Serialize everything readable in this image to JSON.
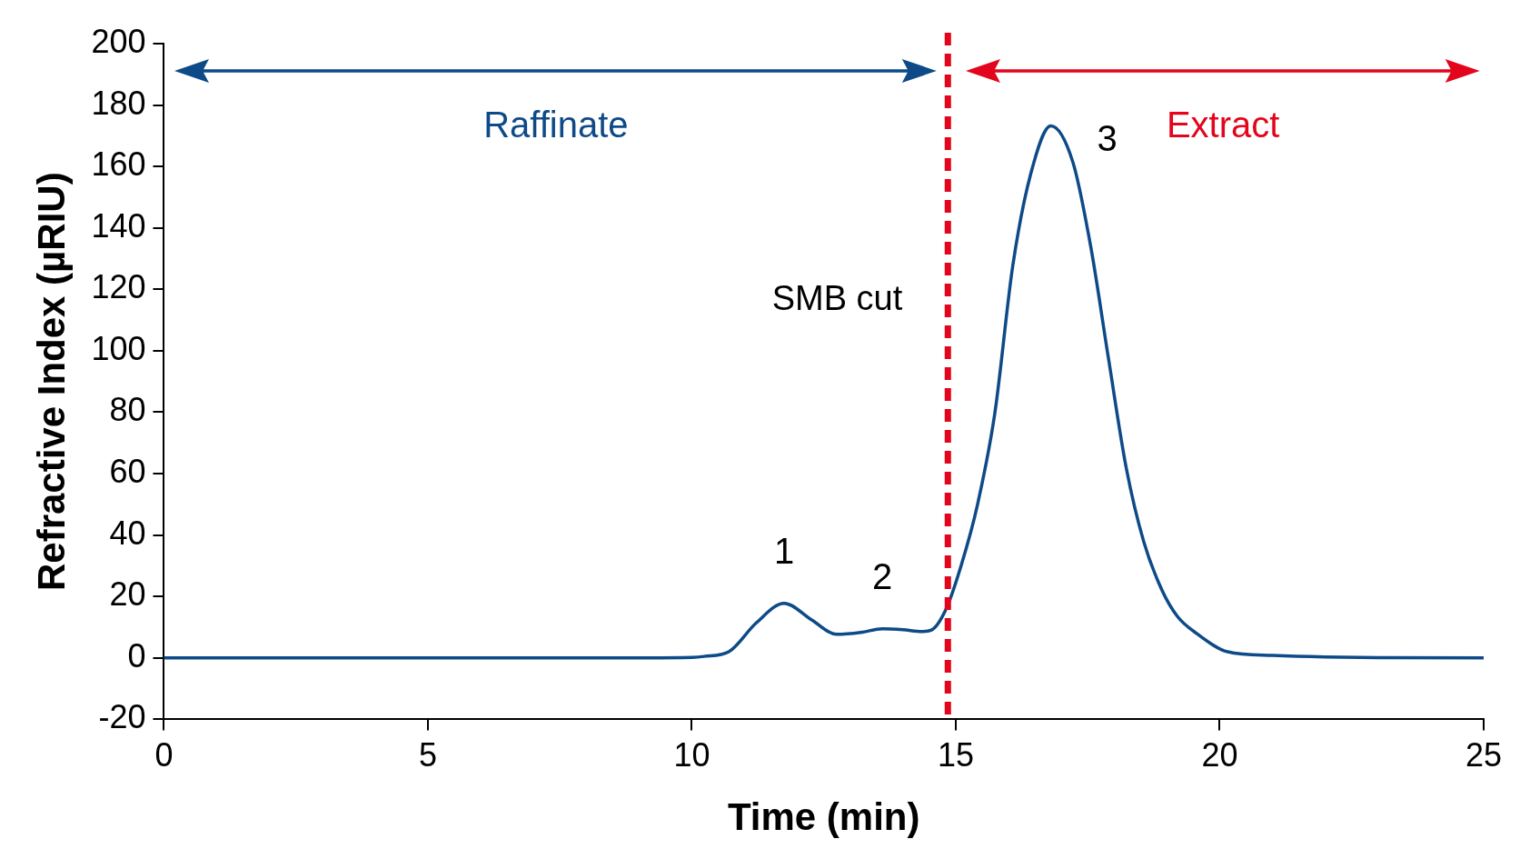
{
  "chart_data": {
    "type": "line",
    "xlabel": "Time (min)",
    "ylabel": "Refractive Index (µRIU)",
    "xlim": [
      0,
      25
    ],
    "xticks": [
      0,
      5,
      10,
      15,
      20,
      25
    ],
    "ylim": [
      -20,
      200
    ],
    "yticks": [
      -20,
      0,
      20,
      40,
      60,
      80,
      100,
      120,
      140,
      160,
      180,
      200
    ],
    "series": [
      {
        "color": "#0d4a87",
        "x": [
          0,
          2,
          4,
          6,
          8,
          10,
          10.23,
          10.7,
          11.22,
          11.75,
          12.27,
          12.74,
          13.2,
          13.61,
          14.0,
          14.36,
          14.54,
          14.81,
          15.1,
          15.41,
          15.74,
          16.08,
          16.42,
          16.8,
          17.22,
          17.56,
          17.89,
          18.23,
          18.56,
          18.9,
          19.2,
          19.57,
          20.15,
          21,
          22,
          23,
          25
        ],
        "values": [
          0,
          0,
          0,
          0,
          0,
          0.2,
          0.5,
          2,
          11.4,
          17.8,
          12.4,
          7.7,
          8.3,
          9.5,
          9.2,
          8.6,
          9.1,
          15.7,
          30,
          49.8,
          79.7,
          127.7,
          157.6,
          173.2,
          161.3,
          133.6,
          97.8,
          61.8,
          37.9,
          22.3,
          13.5,
          7.9,
          2,
          0.8,
          0.3,
          0.1,
          0
        ]
      }
    ],
    "ref_lines": [
      {
        "axis": "x",
        "value": 14.85,
        "label": "SMB cut",
        "color": "#e3051b",
        "line_style": "dashed"
      }
    ],
    "annotations": [
      "Raffinate",
      "Extract",
      {
        "text": "1",
        "x": 11.75,
        "y": 17.8
      },
      {
        "text": "2",
        "x": 13.61,
        "y": 9.5
      },
      {
        "text": "3",
        "x": 16.8,
        "y": 173.2
      }
    ],
    "legend": false,
    "marker": "none",
    "line_style": "solid"
  }
}
